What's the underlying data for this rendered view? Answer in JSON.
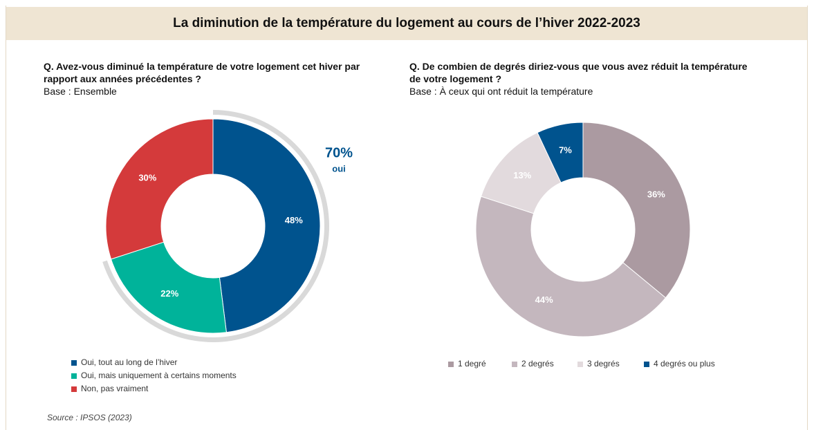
{
  "title": "La diminution de la température du logement au cours de l’hiver 2022-2023",
  "source": "Source : IPSOS (2023)",
  "chart_data": [
    {
      "type": "donut",
      "question": "Q. Avez-vous diminué la température de votre logement cet hiver par rapport aux années précédentes ?",
      "base": "Base : Ensemble",
      "categories": [
        "Oui, tout au long de l’hiver",
        "Oui, mais uniquement à certains moments",
        "Non, pas vraiment"
      ],
      "values": [
        48,
        22,
        30
      ],
      "value_labels": [
        "48%",
        "22%",
        "30%"
      ],
      "colors": [
        "#00538e",
        "#00b39a",
        "#d43a3b"
      ],
      "annotation": {
        "value": 70,
        "label": "70%",
        "text": "oui"
      },
      "legend": "bottom-left-vertical"
    },
    {
      "type": "donut",
      "question": "Q. De combien de degrés diriez-vous que vous avez réduit la température de votre logement ?",
      "base": "Base : À ceux qui ont réduit la température",
      "categories": [
        "1 degré",
        "2 degrés",
        "3 degrés",
        "4 degrés ou plus"
      ],
      "values": [
        36,
        44,
        13,
        7
      ],
      "value_labels": [
        "36%",
        "44%",
        "13%",
        "7%"
      ],
      "colors": [
        "#ab9aa1",
        "#c4b7be",
        "#e2dadd",
        "#00538e"
      ],
      "legend": "bottom-horizontal"
    }
  ]
}
